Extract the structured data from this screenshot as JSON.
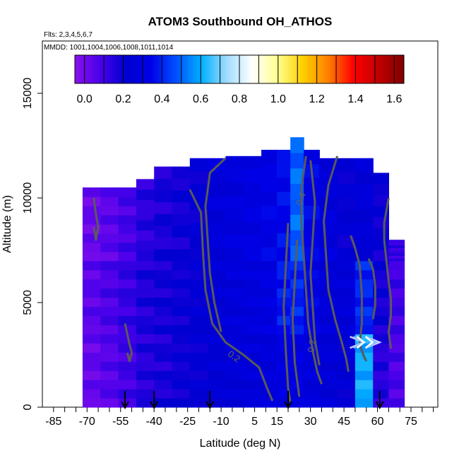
{
  "chart_data": {
    "type": "heatmap",
    "title": "ATOM3 Southbound OH_ATHOS",
    "subtitle_flights": "Flts: 2,3,4,5,6,7",
    "subtitle_dates": "MMDD: 1001,1004,1006,1008,1011,1014",
    "xlabel": "Latitude (deg N)",
    "ylabel": "Altitude (m)",
    "xlim": [
      -90,
      87
    ],
    "ylim": [
      0,
      17500
    ],
    "x_tick_labels": [
      "-85",
      "-70",
      "-55",
      "-40",
      "-25",
      "-10",
      "5",
      "15",
      "30",
      "45",
      "60",
      "75"
    ],
    "x_tick_values": [
      -85,
      -70,
      -55,
      -40,
      -25,
      -10,
      5,
      15,
      30,
      45,
      60,
      75
    ],
    "y_tick_labels": [
      "0",
      "5000",
      "10000",
      "15000"
    ],
    "y_tick_values": [
      0,
      5000,
      10000,
      15000
    ],
    "colorbar": {
      "tick_labels": [
        "0.0",
        "0.2",
        "0.4",
        "0.6",
        "0.8",
        "1.0",
        "1.2",
        "1.4",
        "1.6"
      ],
      "tick_values": [
        0.0,
        0.2,
        0.4,
        0.6,
        0.8,
        1.0,
        1.2,
        1.4,
        1.6
      ],
      "range": [
        -0.05,
        1.65
      ],
      "colors": [
        "#8a10ec",
        "#4a00ea",
        "#0000d0",
        "#0000e8",
        "#0050ff",
        "#00b0ff",
        "#a0dcff",
        "#ffffff",
        "#ffff90",
        "#ffd000",
        "#ff8000",
        "#ff0000",
        "#c00000",
        "#800000"
      ]
    },
    "contour_labels": [
      "0.4",
      "0.2",
      "0.2"
    ],
    "arrow_latitudes": [
      -53,
      -40,
      -15,
      20,
      61
    ],
    "altitude_profile": [
      {
        "lat": -68,
        "top": 10500
      },
      {
        "lat": -65,
        "top": 10500
      },
      {
        "lat": -60,
        "top": 10500
      },
      {
        "lat": -55,
        "top": 10500
      },
      {
        "lat": -50,
        "top": 10500
      },
      {
        "lat": -45,
        "top": 10900
      },
      {
        "lat": -40,
        "top": 10900
      },
      {
        "lat": -35,
        "top": 10900
      },
      {
        "lat": -30,
        "top": 11500
      },
      {
        "lat": -25,
        "top": 11500
      },
      {
        "lat": -20,
        "top": 11900
      },
      {
        "lat": -15,
        "top": 11900
      },
      {
        "lat": -10,
        "top": 11900
      },
      {
        "lat": -5,
        "top": 12000
      },
      {
        "lat": 0,
        "top": 12000
      },
      {
        "lat": 5,
        "top": 12000
      },
      {
        "lat": 10,
        "top": 12300
      },
      {
        "lat": 15,
        "top": 12300
      },
      {
        "lat": 20,
        "top": 12300
      },
      {
        "lat": 25,
        "top": 12900
      },
      {
        "lat": 30,
        "top": 12300
      },
      {
        "lat": 35,
        "top": 12300
      },
      {
        "lat": 40,
        "top": 11900
      },
      {
        "lat": 45,
        "top": 11900
      },
      {
        "lat": 50,
        "top": 11900
      },
      {
        "lat": 55,
        "top": 11900
      },
      {
        "lat": 60,
        "top": 11200
      },
      {
        "lat": 65,
        "top": 9800
      },
      {
        "lat": 70,
        "top": 8000
      }
    ],
    "cells": [
      {
        "lat": -68,
        "alt_min": 0,
        "alt_max": 3500,
        "value": 0.03
      },
      {
        "lat": -68,
        "alt_min": 3500,
        "alt_max": 7000,
        "value": 0.05
      },
      {
        "lat": -68,
        "alt_min": 7000,
        "alt_max": 10500,
        "value": 0.02
      },
      {
        "lat": -60,
        "alt_min": 0,
        "alt_max": 3500,
        "value": 0.06
      },
      {
        "lat": -60,
        "alt_min": 3500,
        "alt_max": 7000,
        "value": 0.08
      },
      {
        "lat": -60,
        "alt_min": 7000,
        "alt_max": 10500,
        "value": 0.05
      },
      {
        "lat": -52,
        "alt_min": 0,
        "alt_max": 3500,
        "value": 0.1
      },
      {
        "lat": -52,
        "alt_min": 3500,
        "alt_max": 7000,
        "value": 0.12
      },
      {
        "lat": -52,
        "alt_min": 7000,
        "alt_max": 10500,
        "value": 0.09
      },
      {
        "lat": -44,
        "alt_min": 0,
        "alt_max": 3500,
        "value": 0.15
      },
      {
        "lat": -44,
        "alt_min": 3500,
        "alt_max": 7000,
        "value": 0.16
      },
      {
        "lat": -44,
        "alt_min": 7000,
        "alt_max": 10900,
        "value": 0.14
      },
      {
        "lat": -36,
        "alt_min": 0,
        "alt_max": 3500,
        "value": 0.17
      },
      {
        "lat": -36,
        "alt_min": 3500,
        "alt_max": 7000,
        "value": 0.18
      },
      {
        "lat": -36,
        "alt_min": 7000,
        "alt_max": 11500,
        "value": 0.17
      },
      {
        "lat": -28,
        "alt_min": 0,
        "alt_max": 3500,
        "value": 0.2
      },
      {
        "lat": -28,
        "alt_min": 3500,
        "alt_max": 7000,
        "value": 0.2
      },
      {
        "lat": -28,
        "alt_min": 7000,
        "alt_max": 11500,
        "value": 0.19
      },
      {
        "lat": -20,
        "alt_min": 0,
        "alt_max": 3500,
        "value": 0.22
      },
      {
        "lat": -20,
        "alt_min": 3500,
        "alt_max": 7000,
        "value": 0.23
      },
      {
        "lat": -20,
        "alt_min": 7000,
        "alt_max": 11900,
        "value": 0.22
      },
      {
        "lat": -12,
        "alt_min": 0,
        "alt_max": 3500,
        "value": 0.24
      },
      {
        "lat": -12,
        "alt_min": 3500,
        "alt_max": 7000,
        "value": 0.25
      },
      {
        "lat": -12,
        "alt_min": 7000,
        "alt_max": 11900,
        "value": 0.26
      },
      {
        "lat": -4,
        "alt_min": 0,
        "alt_max": 3500,
        "value": 0.25
      },
      {
        "lat": -4,
        "alt_min": 3500,
        "alt_max": 7000,
        "value": 0.27
      },
      {
        "lat": -4,
        "alt_min": 7000,
        "alt_max": 12000,
        "value": 0.28
      },
      {
        "lat": 4,
        "alt_min": 0,
        "alt_max": 3500,
        "value": 0.26
      },
      {
        "lat": 4,
        "alt_min": 3500,
        "alt_max": 7000,
        "value": 0.28
      },
      {
        "lat": 4,
        "alt_min": 7000,
        "alt_max": 12000,
        "value": 0.3
      },
      {
        "lat": 12,
        "alt_min": 0,
        "alt_max": 3500,
        "value": 0.27
      },
      {
        "lat": 12,
        "alt_min": 3500,
        "alt_max": 7000,
        "value": 0.3
      },
      {
        "lat": 12,
        "alt_min": 7000,
        "alt_max": 12300,
        "value": 0.32
      },
      {
        "lat": 18,
        "alt_min": 0,
        "alt_max": 3500,
        "value": 0.3
      },
      {
        "lat": 18,
        "alt_min": 3500,
        "alt_max": 7000,
        "value": 0.38
      },
      {
        "lat": 18,
        "alt_min": 7000,
        "alt_max": 12300,
        "value": 0.35
      },
      {
        "lat": 24,
        "alt_min": 0,
        "alt_max": 3500,
        "value": 0.3
      },
      {
        "lat": 24,
        "alt_min": 3500,
        "alt_max": 7000,
        "value": 0.4
      },
      {
        "lat": 24,
        "alt_min": 7000,
        "alt_max": 12900,
        "value": 0.5
      },
      {
        "lat": 30,
        "alt_min": 0,
        "alt_max": 3500,
        "value": 0.27
      },
      {
        "lat": 30,
        "alt_min": 3500,
        "alt_max": 7000,
        "value": 0.32
      },
      {
        "lat": 30,
        "alt_min": 7000,
        "alt_max": 12300,
        "value": 0.33
      },
      {
        "lat": 38,
        "alt_min": 0,
        "alt_max": 3500,
        "value": 0.25
      },
      {
        "lat": 38,
        "alt_min": 3500,
        "alt_max": 7000,
        "value": 0.26
      },
      {
        "lat": 38,
        "alt_min": 7000,
        "alt_max": 11900,
        "value": 0.27
      },
      {
        "lat": 46,
        "alt_min": 0,
        "alt_max": 3500,
        "value": 0.23
      },
      {
        "lat": 46,
        "alt_min": 3500,
        "alt_max": 7000,
        "value": 0.26
      },
      {
        "lat": 46,
        "alt_min": 7000,
        "alt_max": 11900,
        "value": 0.22
      },
      {
        "lat": 54,
        "alt_min": 0,
        "alt_max": 3500,
        "value": 0.6
      },
      {
        "lat": 54,
        "alt_min": 3500,
        "alt_max": 7000,
        "value": 0.4
      },
      {
        "lat": 54,
        "alt_min": 7000,
        "alt_max": 11900,
        "value": 0.25
      },
      {
        "lat": 62,
        "alt_min": 0,
        "alt_max": 3500,
        "value": 0.15
      },
      {
        "lat": 62,
        "alt_min": 3500,
        "alt_max": 7000,
        "value": 0.18
      },
      {
        "lat": 62,
        "alt_min": 7000,
        "alt_max": 11200,
        "value": 0.2
      },
      {
        "lat": 68,
        "alt_min": 0,
        "alt_max": 3500,
        "value": 0.08
      },
      {
        "lat": 68,
        "alt_min": 3500,
        "alt_max": 7000,
        "value": 0.1
      },
      {
        "lat": 68,
        "alt_min": 7000,
        "alt_max": 8000,
        "value": 0.12
      }
    ]
  }
}
